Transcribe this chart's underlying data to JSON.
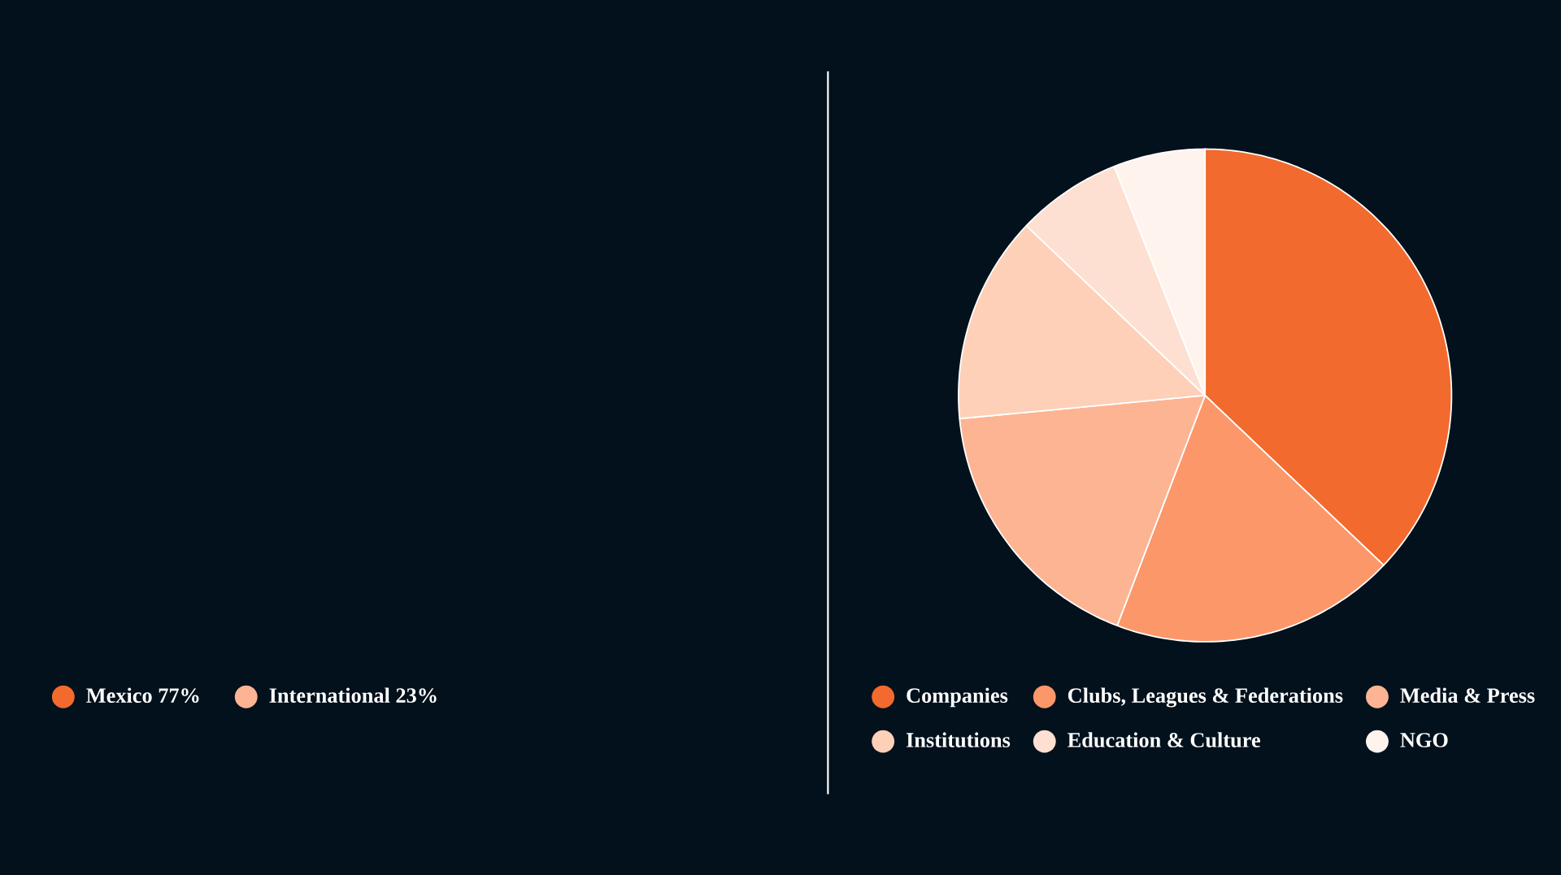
{
  "chart_data": [
    {
      "type": "other",
      "categories": [
        "Mexico 77%",
        "International 23%"
      ],
      "colors": [
        "#f26a2d",
        "#fdb493"
      ]
    },
    {
      "type": "pie",
      "categories": [
        "Companies",
        "Clubs, Leagues & Federations",
        "Media & Press",
        "Institutions",
        "Education & Culture",
        "NGO"
      ],
      "values": [
        37.1,
        18.7,
        17.7,
        13.6,
        6.9,
        6.0
      ],
      "colors": [
        "#f26a2d",
        "#fc9769",
        "#fdb493",
        "#fed0b8",
        "#fde0d1",
        "#fff3ee"
      ],
      "legend": "bottom"
    }
  ]
}
